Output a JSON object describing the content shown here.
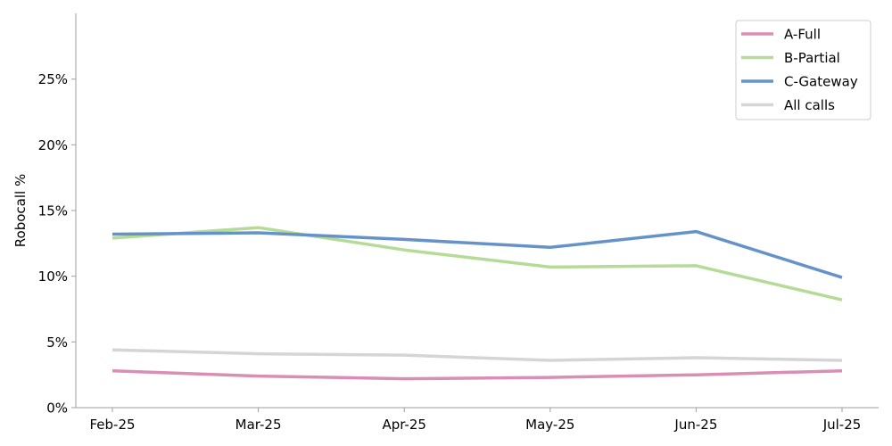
{
  "chart_data": {
    "type": "line",
    "title": "",
    "xlabel": "",
    "ylabel": "Robocall %",
    "categories": [
      "Feb-25",
      "Mar-25",
      "Apr-25",
      "May-25",
      "Jun-25",
      "Jul-25"
    ],
    "ylim": [
      0,
      30
    ],
    "yticks": [
      0,
      5,
      10,
      15,
      20,
      25
    ],
    "ytick_labels": [
      "0%",
      "5%",
      "10%",
      "15%",
      "20%",
      "25%"
    ],
    "grid": false,
    "legend_position": "top-right",
    "series": [
      {
        "name": "A-Full",
        "color": "#d98fb3",
        "values": [
          2.8,
          2.4,
          2.2,
          2.3,
          2.5,
          2.8
        ]
      },
      {
        "name": "B-Partial",
        "color": "#b5db97",
        "values": [
          12.9,
          13.7,
          12.0,
          10.7,
          10.8,
          8.2
        ]
      },
      {
        "name": "C-Gateway",
        "color": "#6593c9",
        "values": [
          13.2,
          13.3,
          12.8,
          12.2,
          13.4,
          9.9
        ]
      },
      {
        "name": "All calls",
        "color": "#d5d5d5",
        "values": [
          4.4,
          4.1,
          4.0,
          3.6,
          3.8,
          3.6
        ]
      }
    ]
  }
}
